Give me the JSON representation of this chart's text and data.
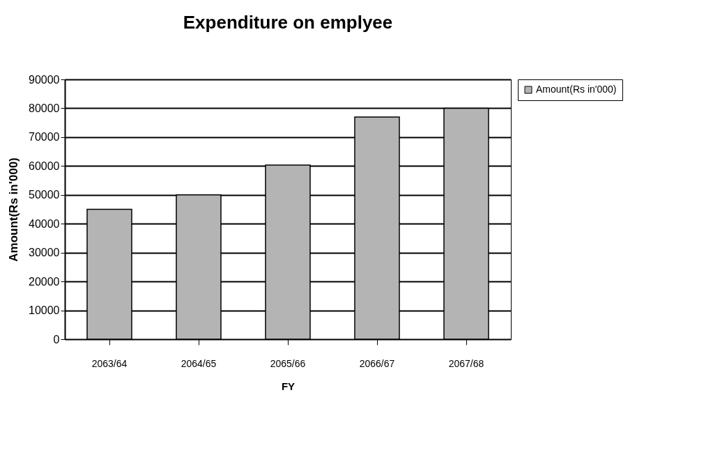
{
  "chart_data": {
    "type": "bar",
    "title": "Expenditure on emplyee",
    "xlabel": "FY",
    "ylabel": "Amount(Rs in'000)",
    "categories": [
      "2063/64",
      "2064/65",
      "2065/66",
      "2066/67",
      "2067/68"
    ],
    "series": [
      {
        "name": "Amount(Rs in'000)",
        "color": "#b4b4b4",
        "values": [
          45000,
          50000,
          60300,
          77000,
          80000
        ]
      }
    ],
    "ylim": [
      0,
      90000
    ],
    "yticks": [
      0,
      10000,
      20000,
      30000,
      40000,
      50000,
      60000,
      70000,
      80000,
      90000
    ],
    "grid": "y",
    "legend": "right"
  }
}
